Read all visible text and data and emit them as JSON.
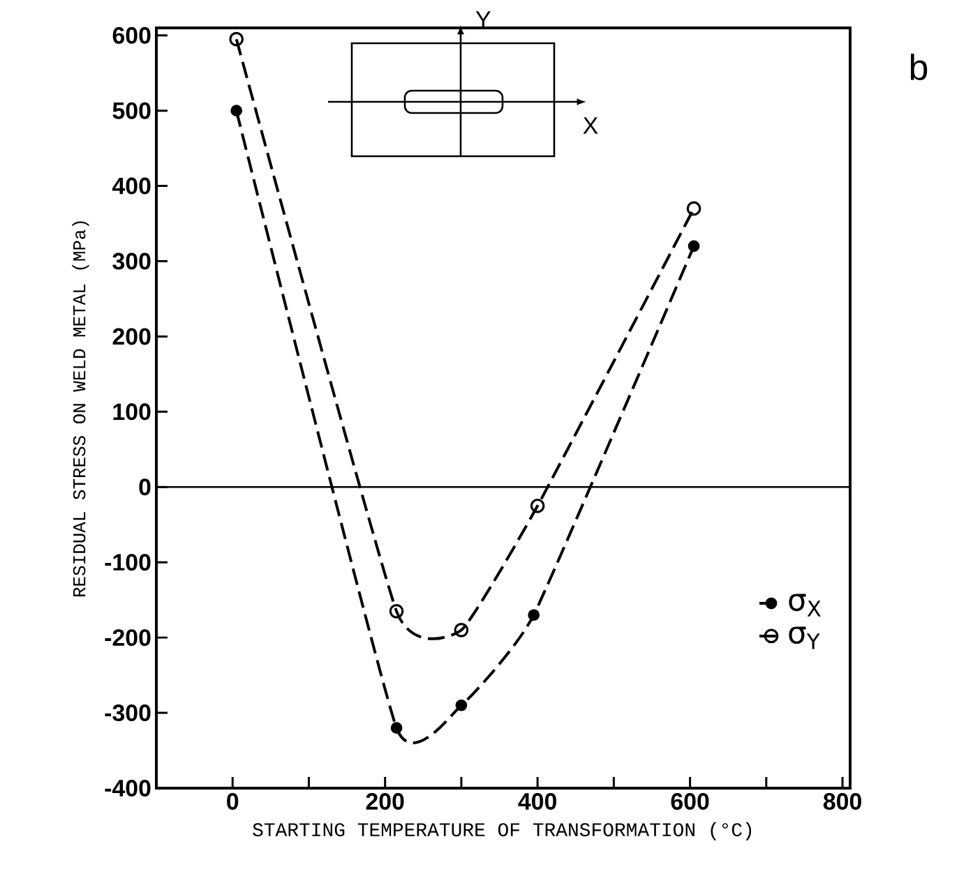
{
  "chart_data": {
    "type": "line",
    "xlabel": "STARTING TEMPERATURE OF TRANSFORMATION (°C)",
    "ylabel": "RESIDUAL STRESS ON WELD METAL (MPa)",
    "xlim": [
      -100,
      810
    ],
    "ylim": [
      -400,
      610
    ],
    "xticks": [
      0,
      {
        "value": 100,
        "label": null
      },
      200,
      {
        "value": 300,
        "label": null
      },
      400,
      {
        "value": 500,
        "label": null
      },
      600,
      {
        "value": 700,
        "label": null
      },
      800
    ],
    "yticks": [
      -400,
      -300,
      -200,
      -100,
      0,
      100,
      200,
      300,
      400,
      500,
      600
    ],
    "grid": false,
    "legend": "bottom right",
    "line_style": "dashed",
    "series": [
      {
        "name": "σ$_{X}$",
        "color": "#000000",
        "marker": "circle",
        "x": [
          5,
          215,
          300,
          395,
          605
        ],
        "values": [
          500,
          -320,
          -290,
          -170,
          320
        ]
      },
      {
        "name": "σ$_{Y}$",
        "color": "#000000",
        "marker": "circle_open",
        "x": [
          5,
          215,
          300,
          400,
          605
        ],
        "values": [
          595,
          -165,
          -190,
          -25,
          370
        ]
      }
    ],
    "ref_lines": [
      {
        "axis": "y",
        "value": 0
      }
    ],
    "annotations": [
      "b",
      "X",
      "Y"
    ]
  }
}
